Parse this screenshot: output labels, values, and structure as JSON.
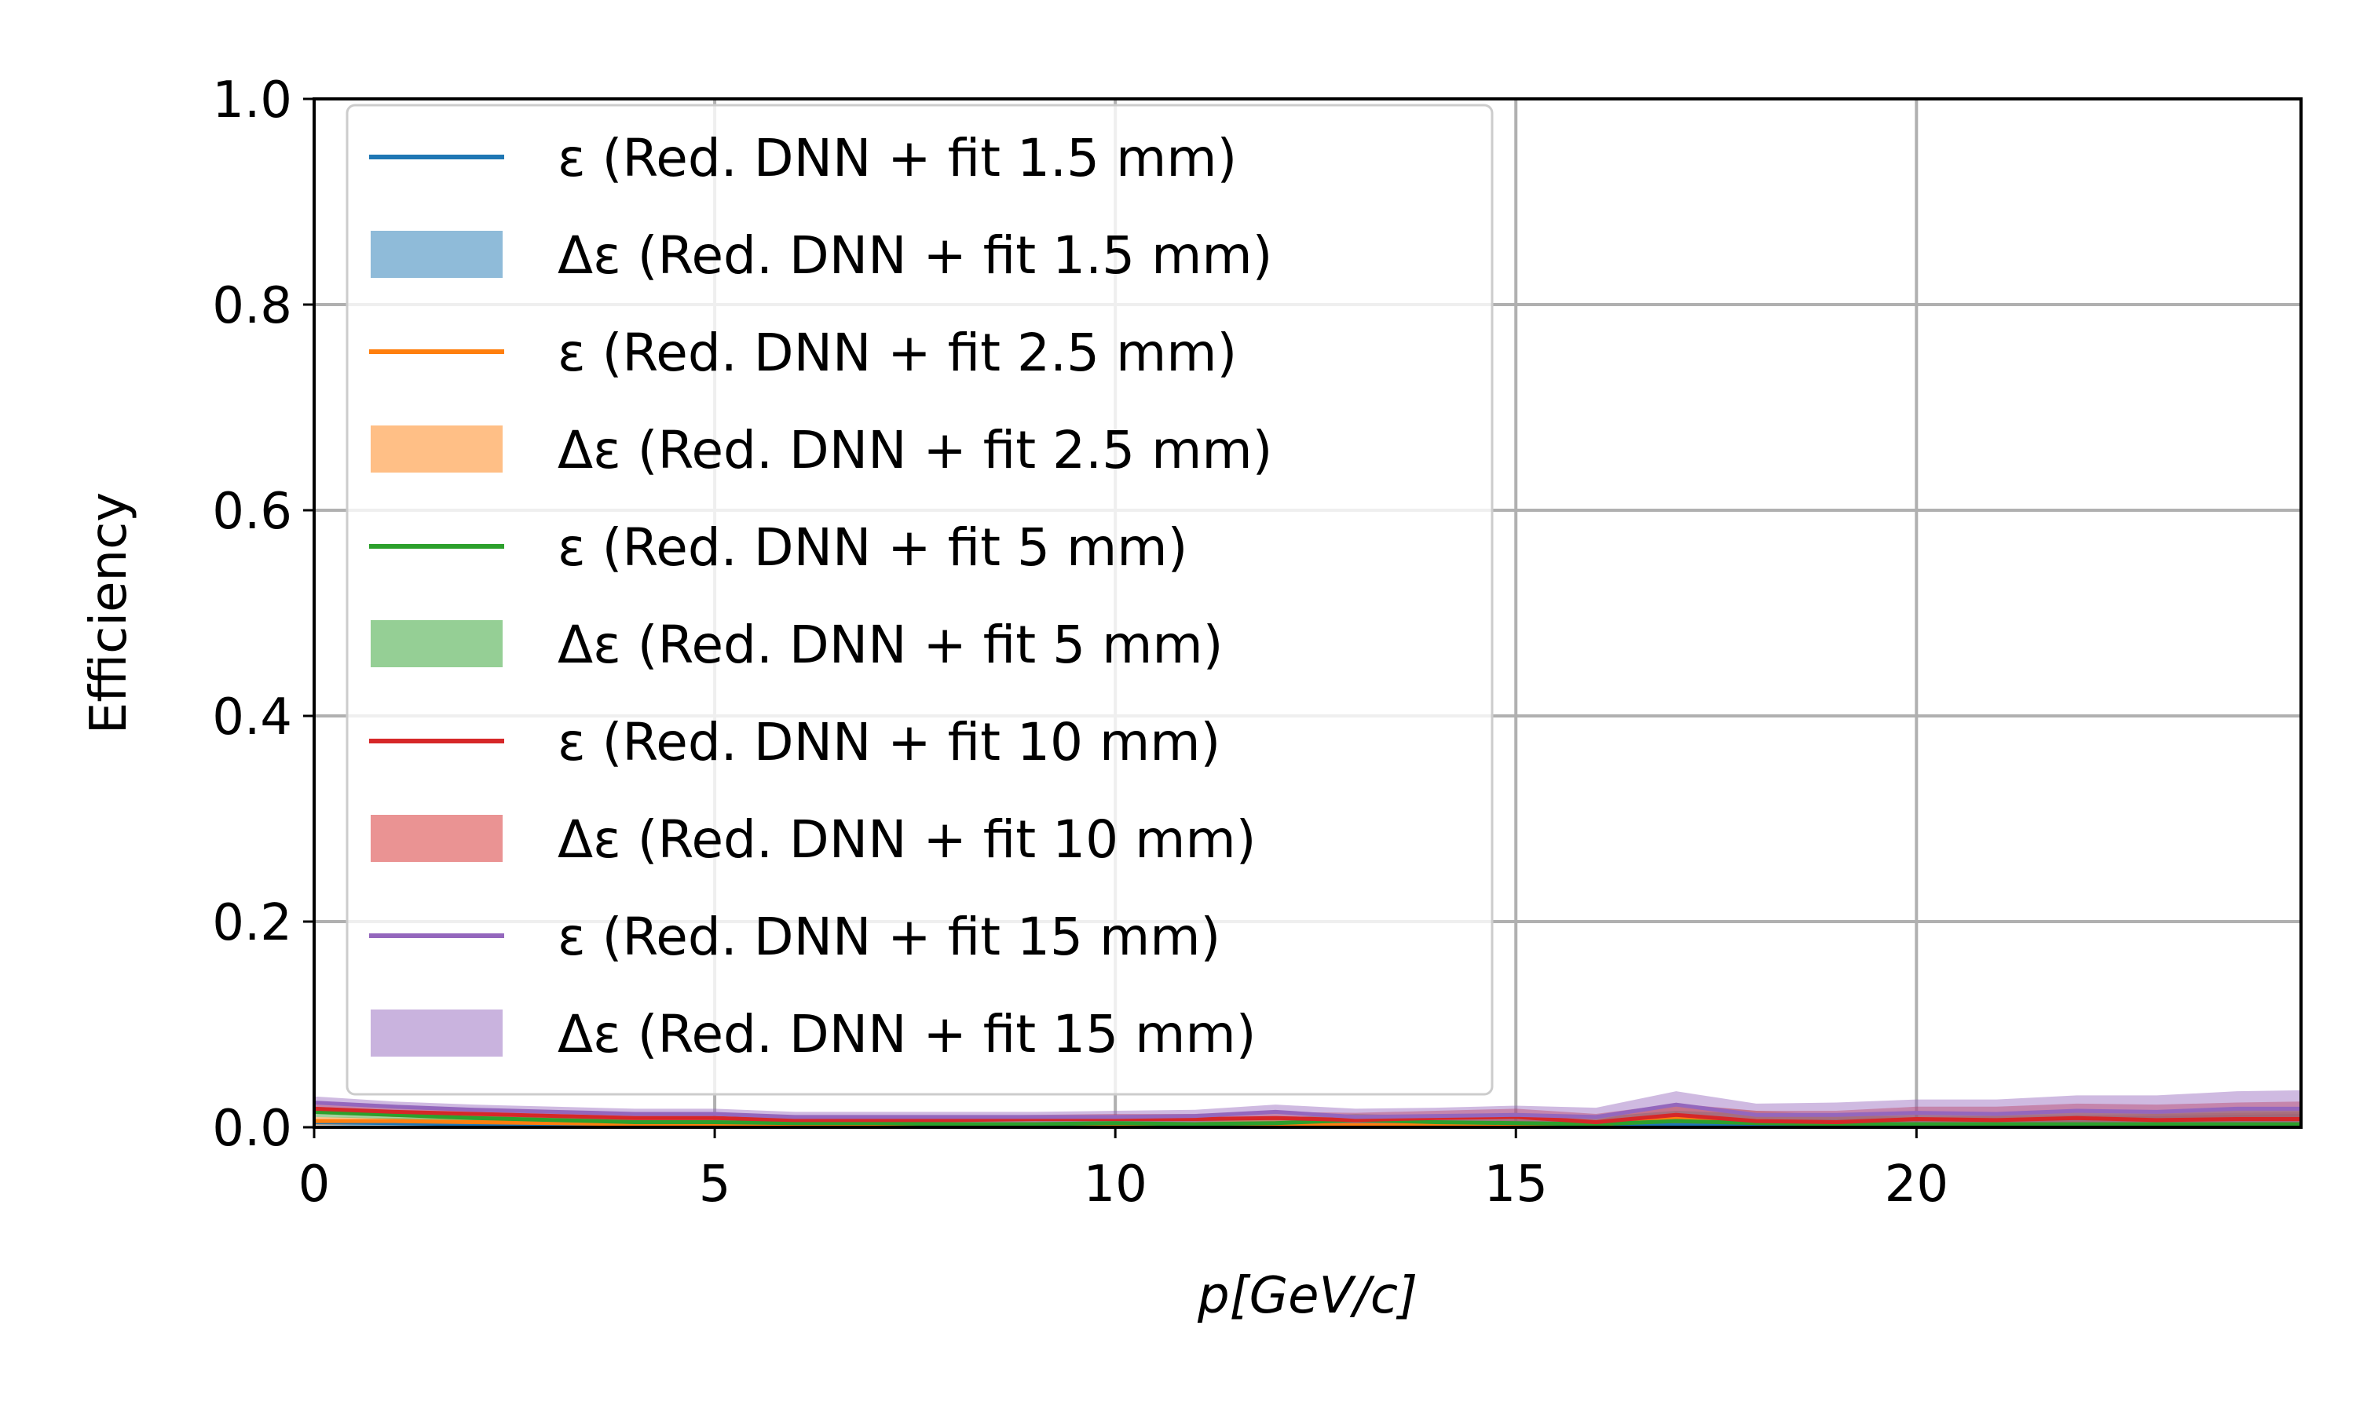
{
  "chart_data": {
    "type": "line",
    "xlabel": "p[GeV/c]",
    "ylabel": "Efficiency",
    "xlim": [
      0,
      24.8
    ],
    "ylim": [
      0,
      1.0
    ],
    "xticks": [
      0,
      5,
      10,
      15,
      20
    ],
    "xtick_labels": [
      "0",
      "5",
      "10",
      "15",
      "20"
    ],
    "yticks": [
      0.0,
      0.2,
      0.4,
      0.6,
      0.8,
      1.0
    ],
    "ytick_labels": [
      "0.0",
      "0.2",
      "0.4",
      "0.6",
      "0.8",
      "1.0"
    ],
    "grid": true,
    "legend_position": "upper-left",
    "x": [
      0,
      1,
      2,
      3,
      4,
      5,
      6,
      7,
      8,
      9,
      10,
      11,
      12,
      13,
      14,
      15,
      16,
      17,
      18,
      19,
      20,
      21,
      22,
      23,
      24,
      24.8
    ],
    "legend": [
      {
        "kind": "line",
        "label": "ε (Red. DNN + fit 1.5 mm)",
        "color": "#1f77b4"
      },
      {
        "kind": "band",
        "label": "Δε (Red. DNN + fit 1.5 mm)",
        "color": "#1f77b4"
      },
      {
        "kind": "line",
        "label": "ε (Red. DNN + fit 2.5 mm)",
        "color": "#ff7f0e"
      },
      {
        "kind": "band",
        "label": "Δε (Red. DNN + fit 2.5 mm)",
        "color": "#ff7f0e"
      },
      {
        "kind": "line",
        "label": "ε (Red. DNN + fit 5 mm)",
        "color": "#2ca02c"
      },
      {
        "kind": "band",
        "label": "Δε (Red. DNN + fit 5 mm)",
        "color": "#2ca02c"
      },
      {
        "kind": "line",
        "label": "ε (Red. DNN + fit 10 mm)",
        "color": "#d62728"
      },
      {
        "kind": "band",
        "label": "Δε (Red. DNN + fit 10 mm)",
        "color": "#d62728"
      },
      {
        "kind": "line",
        "label": "ε (Red. DNN + fit 15 mm)",
        "color": "#9467bd"
      },
      {
        "kind": "band",
        "label": "Δε (Red. DNN + fit 15 mm)",
        "color": "#9467bd"
      }
    ],
    "series": [
      {
        "name": "ε (Red. DNN + fit 1.5 mm)",
        "color": "#1f77b4",
        "values": [
          0.005,
          0.004,
          0.003,
          0.003,
          0.002,
          0.002,
          0.001,
          0.001,
          0.001,
          0.001,
          0.001,
          0.001,
          0.001,
          0.001,
          0.001,
          0.001,
          0.001,
          0.002,
          0.001,
          0.001,
          0.001,
          0.001,
          0.001,
          0.001,
          0.001,
          0.001
        ],
        "err": [
          0.003,
          0.003,
          0.002,
          0.002,
          0.002,
          0.002,
          0.002,
          0.002,
          0.002,
          0.002,
          0.002,
          0.003,
          0.003,
          0.004,
          0.004,
          0.005,
          0.005,
          0.008,
          0.006,
          0.007,
          0.008,
          0.008,
          0.009,
          0.01,
          0.011,
          0.012
        ]
      },
      {
        "name": "ε (Red. DNN + fit 2.5 mm)",
        "color": "#ff7f0e",
        "values": [
          0.006,
          0.006,
          0.005,
          0.004,
          0.003,
          0.003,
          0.002,
          0.002,
          0.002,
          0.002,
          0.003,
          0.002,
          0.002,
          0.002,
          0.002,
          0.002,
          0.002,
          0.01,
          0.006,
          0.004,
          0.002,
          0.002,
          0.002,
          0.002,
          0.002,
          0.002
        ],
        "err": [
          0.004,
          0.003,
          0.003,
          0.003,
          0.002,
          0.002,
          0.002,
          0.002,
          0.002,
          0.002,
          0.004,
          0.003,
          0.004,
          0.004,
          0.004,
          0.005,
          0.005,
          0.012,
          0.01,
          0.008,
          0.008,
          0.009,
          0.01,
          0.011,
          0.012,
          0.013
        ]
      },
      {
        "name": "ε (Red. DNN + fit 5 mm)",
        "color": "#2ca02c",
        "values": [
          0.015,
          0.012,
          0.009,
          0.007,
          0.005,
          0.005,
          0.004,
          0.004,
          0.003,
          0.003,
          0.004,
          0.003,
          0.004,
          0.007,
          0.005,
          0.004,
          0.003,
          0.006,
          0.004,
          0.003,
          0.003,
          0.003,
          0.003,
          0.003,
          0.003,
          0.003
        ],
        "err": [
          0.005,
          0.004,
          0.004,
          0.003,
          0.003,
          0.003,
          0.003,
          0.003,
          0.003,
          0.003,
          0.004,
          0.004,
          0.005,
          0.006,
          0.006,
          0.007,
          0.007,
          0.01,
          0.009,
          0.01,
          0.01,
          0.011,
          0.012,
          0.013,
          0.014,
          0.015
        ]
      },
      {
        "name": "ε (Red. DNN + fit 10 mm)",
        "color": "#d62728",
        "values": [
          0.018,
          0.015,
          0.013,
          0.011,
          0.009,
          0.009,
          0.007,
          0.007,
          0.007,
          0.008,
          0.008,
          0.008,
          0.009,
          0.007,
          0.009,
          0.01,
          0.005,
          0.012,
          0.006,
          0.005,
          0.008,
          0.007,
          0.009,
          0.007,
          0.008,
          0.008
        ],
        "err": [
          0.005,
          0.005,
          0.004,
          0.004,
          0.004,
          0.004,
          0.004,
          0.004,
          0.004,
          0.004,
          0.005,
          0.005,
          0.006,
          0.007,
          0.007,
          0.008,
          0.008,
          0.011,
          0.01,
          0.011,
          0.012,
          0.013,
          0.014,
          0.015,
          0.016,
          0.017
        ]
      },
      {
        "name": "ε (Red. DNN + fit 15 mm)",
        "color": "#9467bd",
        "values": [
          0.024,
          0.02,
          0.017,
          0.015,
          0.013,
          0.013,
          0.01,
          0.01,
          0.01,
          0.01,
          0.01,
          0.011,
          0.015,
          0.01,
          0.011,
          0.012,
          0.01,
          0.022,
          0.012,
          0.012,
          0.014,
          0.013,
          0.016,
          0.015,
          0.018,
          0.018
        ],
        "err": [
          0.006,
          0.005,
          0.005,
          0.005,
          0.005,
          0.005,
          0.005,
          0.005,
          0.005,
          0.005,
          0.006,
          0.006,
          0.007,
          0.008,
          0.008,
          0.009,
          0.009,
          0.013,
          0.011,
          0.012,
          0.013,
          0.014,
          0.015,
          0.016,
          0.017,
          0.018
        ]
      }
    ]
  }
}
